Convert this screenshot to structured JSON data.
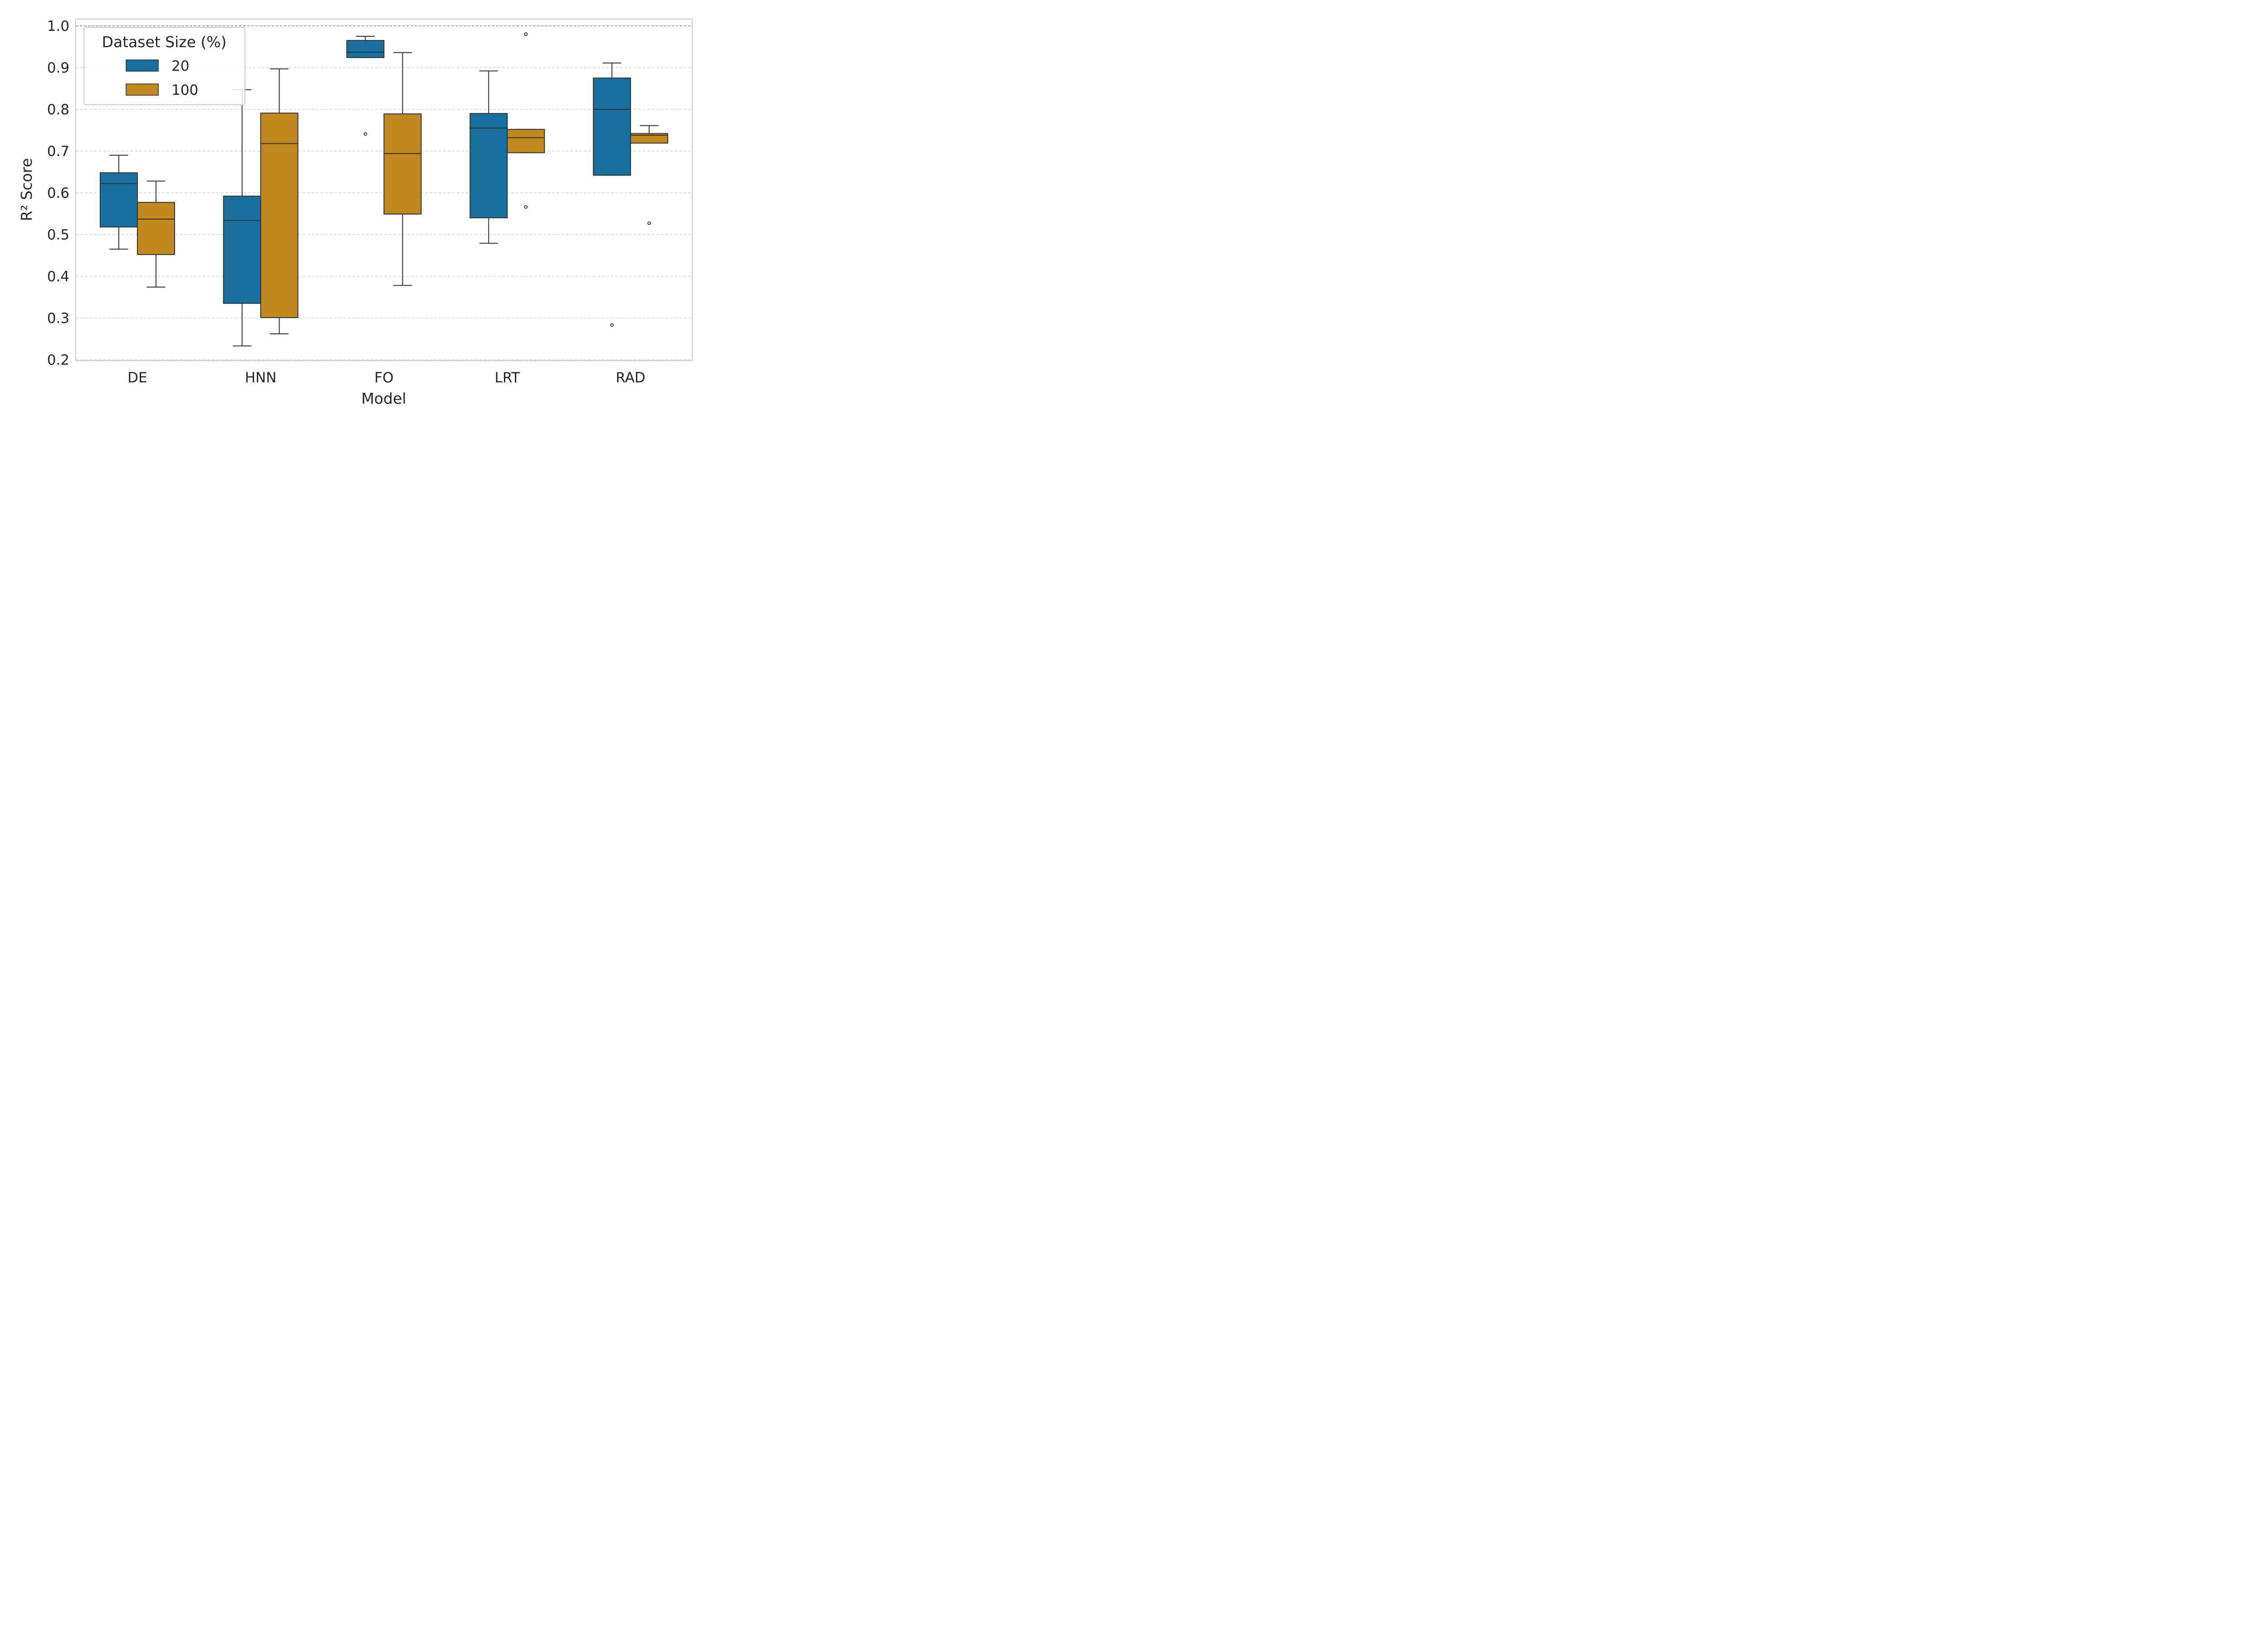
{
  "chart_data": {
    "type": "box",
    "title": "",
    "xlabel": "Model",
    "ylabel": "R² Score",
    "ylim": [
      0.2,
      1.0
    ],
    "yticks": [
      0.2,
      0.3,
      0.4,
      0.5,
      0.6,
      0.7,
      0.8,
      0.9,
      1.0
    ],
    "ytick_labels": [
      "0.2",
      "0.3",
      "0.4",
      "0.5",
      "0.6",
      "0.7",
      "0.8",
      "0.9",
      "1.0"
    ],
    "grid": "horizontal dashed",
    "reference_line": 1.0,
    "categories": [
      "DE",
      "HNN",
      "FO",
      "LRT",
      "RAD"
    ],
    "legend": {
      "title": "Dataset Size (%)",
      "placement": "top-left"
    },
    "series": [
      {
        "name": "20",
        "color": "#1870A0",
        "boxes": [
          {
            "whislo": 0.465,
            "q1": 0.518,
            "med": 0.622,
            "q3": 0.648,
            "whishi": 0.69,
            "fliers": []
          },
          {
            "whislo": 0.233,
            "q1": 0.335,
            "med": 0.534,
            "q3": 0.592,
            "whishi": 0.847,
            "fliers": []
          },
          {
            "whislo": 0.924,
            "q1": 0.924,
            "med": 0.937,
            "q3": 0.965,
            "whishi": 0.975,
            "fliers": [
              0.741
            ]
          },
          {
            "whislo": 0.479,
            "q1": 0.54,
            "med": 0.755,
            "q3": 0.79,
            "whishi": 0.892,
            "fliers": []
          },
          {
            "whislo": 0.642,
            "q1": 0.642,
            "med": 0.8,
            "q3": 0.875,
            "whishi": 0.911,
            "fliers": [
              0.283
            ]
          }
        ]
      },
      {
        "name": "100",
        "color": "#C18820",
        "boxes": [
          {
            "whislo": 0.374,
            "q1": 0.452,
            "med": 0.537,
            "q3": 0.577,
            "whishi": 0.628,
            "fliers": []
          },
          {
            "whislo": 0.262,
            "q1": 0.301,
            "med": 0.718,
            "q3": 0.791,
            "whishi": 0.897,
            "fliers": []
          },
          {
            "whislo": 0.378,
            "q1": 0.549,
            "med": 0.694,
            "q3": 0.789,
            "whishi": 0.936,
            "fliers": []
          },
          {
            "whislo": 0.696,
            "q1": 0.696,
            "med": 0.732,
            "q3": 0.752,
            "whishi": 0.752,
            "fliers": [
              0.566,
              0.98
            ]
          },
          {
            "whislo": 0.719,
            "q1": 0.719,
            "med": 0.738,
            "q3": 0.742,
            "whishi": 0.761,
            "fliers": [
              0.527
            ]
          }
        ]
      }
    ]
  }
}
